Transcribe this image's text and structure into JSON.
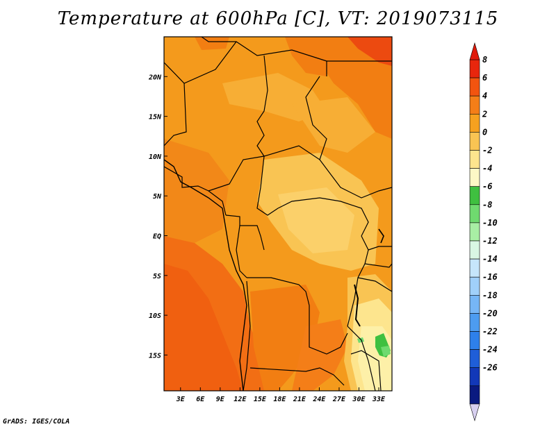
{
  "chart_data": {
    "type": "heatmap",
    "title": "Temperature at 600hPa [C], VT: 2019073115",
    "x_ticks": [
      "3E",
      "6E",
      "9E",
      "12E",
      "15E",
      "18E",
      "21E",
      "24E",
      "27E",
      "30E",
      "33E"
    ],
    "x_tick_values": [
      3,
      6,
      9,
      12,
      15,
      18,
      21,
      24,
      27,
      30,
      33
    ],
    "y_ticks": [
      "20N",
      "15N",
      "10N",
      "5N",
      "EQ",
      "5S",
      "10S",
      "15S"
    ],
    "y_tick_values": [
      20,
      15,
      10,
      5,
      0,
      -5,
      -10,
      -15
    ],
    "xlim": [
      0.5,
      35
    ],
    "ylim": [
      -19.5,
      25
    ],
    "colorbar_labels": [
      "8",
      "6",
      "4",
      "2",
      "0",
      "-2",
      "-4",
      "-6",
      "-8",
      "-10",
      "-12",
      "-14",
      "-16",
      "-18",
      "-20",
      "-22",
      "-24",
      "-26"
    ],
    "colorbar_colors": [
      "#e8260d",
      "#f2540f",
      "#f47e18",
      "#f6a11f",
      "#f9c453",
      "#fde58e",
      "#fdf8c6",
      "#3fc040",
      "#6fda6f",
      "#a8eea4",
      "#d9f7e4",
      "#c6e6fb",
      "#a0d0fa",
      "#76b6f6",
      "#4d9cf0",
      "#2e80ea",
      "#1f5ed8",
      "#1238b8",
      "#0a1a80"
    ],
    "colorbar_arrow_top": "#e01a0a",
    "colorbar_arrow_bottom": "#d8d0f0"
  },
  "footer": {
    "credit": "GrADS: IGES/COLA"
  }
}
